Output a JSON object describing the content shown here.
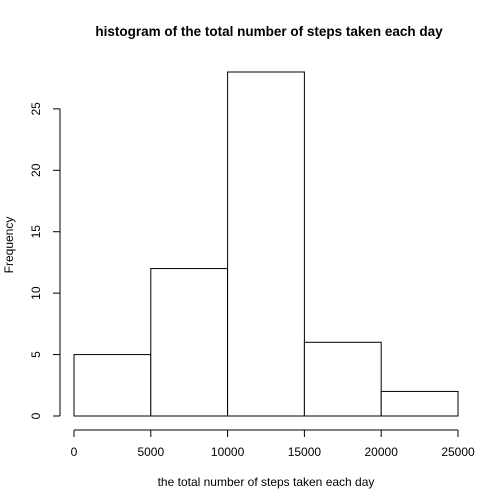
{
  "chart_data": {
    "type": "bar",
    "title": "histogram of the total number of steps taken each day",
    "xlabel": "the total number of steps taken each day",
    "ylabel": "Frequency",
    "bins": [
      {
        "start": 0,
        "end": 5000,
        "count": 5
      },
      {
        "start": 5000,
        "end": 10000,
        "count": 12
      },
      {
        "start": 10000,
        "end": 15000,
        "count": 28
      },
      {
        "start": 15000,
        "end": 20000,
        "count": 6
      },
      {
        "start": 20000,
        "end": 25000,
        "count": 2
      }
    ],
    "xlim": [
      0,
      25000
    ],
    "ylim": [
      0,
      28
    ],
    "x_ticks": [
      0,
      5000,
      10000,
      15000,
      20000,
      25000
    ],
    "y_ticks": [
      0,
      5,
      10,
      15,
      20,
      25
    ],
    "grid": false,
    "legend": "none"
  }
}
